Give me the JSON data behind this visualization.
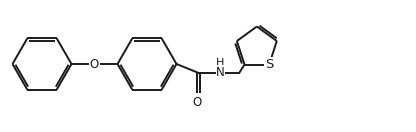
{
  "background_color": "#ffffff",
  "line_color": "#1a1a1a",
  "line_width": 1.4,
  "text_color": "#1a1a1a",
  "font_size": 8.5,
  "figsize": [
    4.16,
    1.32
  ],
  "dpi": 100,
  "labels": {
    "O_phenoxy": "O",
    "NH": "H",
    "O_carbonyl": "O",
    "S": "S",
    "N": "N"
  },
  "xlim": [
    0,
    4.16
  ],
  "ylim": [
    0,
    1.32
  ]
}
